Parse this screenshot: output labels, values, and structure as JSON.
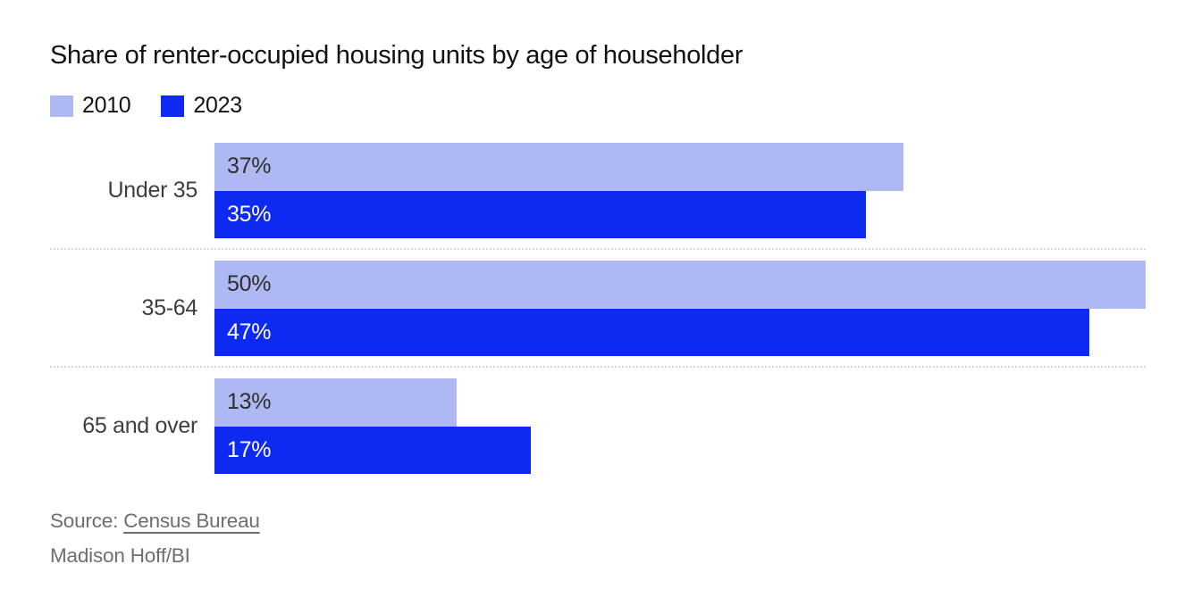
{
  "header": {
    "title": "Share of renter-occupied housing units by age of householder"
  },
  "legend": {
    "items": [
      {
        "label": "2010",
        "color": "#aeb9f3"
      },
      {
        "label": "2023",
        "color": "#0e2af1"
      }
    ]
  },
  "chart_data": {
    "type": "bar",
    "orientation": "horizontal",
    "title": "Share of renter-occupied housing units by age of householder",
    "categories": [
      "Under 35",
      "35-64",
      "65 and over"
    ],
    "series": [
      {
        "name": "2010",
        "color": "#aeb9f3",
        "label_color": "#2e2e2e",
        "values": [
          37,
          50,
          13
        ]
      },
      {
        "name": "2023",
        "color": "#0e2af1",
        "label_color": "#ffffff",
        "values": [
          35,
          47,
          17
        ]
      }
    ],
    "value_suffix": "%",
    "xlim": [
      0,
      50
    ],
    "legend_position": "top",
    "grid": false,
    "bar_labels": [
      "37%",
      "35%",
      "50%",
      "47%",
      "13%",
      "17%"
    ]
  },
  "footer": {
    "source_prefix": "Source: ",
    "source_link": "Census Bureau",
    "credit": "Madison Hoff/BI"
  }
}
